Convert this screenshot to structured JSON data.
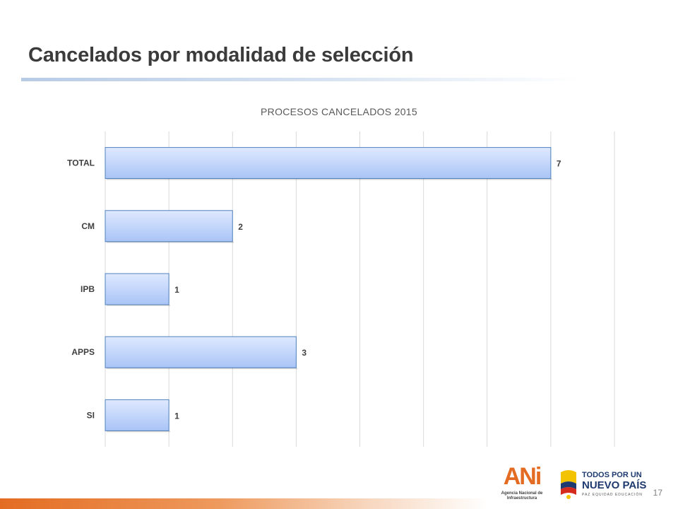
{
  "slide": {
    "title": "Cancelados por modalidad de selección",
    "page_number": "17"
  },
  "logos": {
    "ani_mark": "ANi",
    "ani_subtitle_1": "Agencia Nacional de",
    "ani_subtitle_2": "Infraestructura",
    "gov_line1": "TODOS POR UN",
    "gov_line2": "NUEVO PAÍS",
    "gov_line3": "PAZ  EQUIDAD  EDUCACIÓN"
  },
  "colors": {
    "bar_top": "#dfe9ff",
    "bar_bottom": "#a9c4f6",
    "bar_border": "#4f81bd",
    "grid": "#d9d9d9",
    "accent_orange": "#e36c22",
    "gov_navy": "#1f3a6e"
  },
  "chart_data": {
    "type": "bar",
    "orientation": "horizontal",
    "title": "PROCESOS CANCELADOS 2015",
    "categories": [
      "TOTAL",
      "CM",
      "IPB",
      "APPS",
      "SI"
    ],
    "values": [
      7,
      2,
      1,
      3,
      1
    ],
    "xlim": [
      0,
      8
    ],
    "grid": true,
    "legend": "none",
    "data_labels": true
  }
}
